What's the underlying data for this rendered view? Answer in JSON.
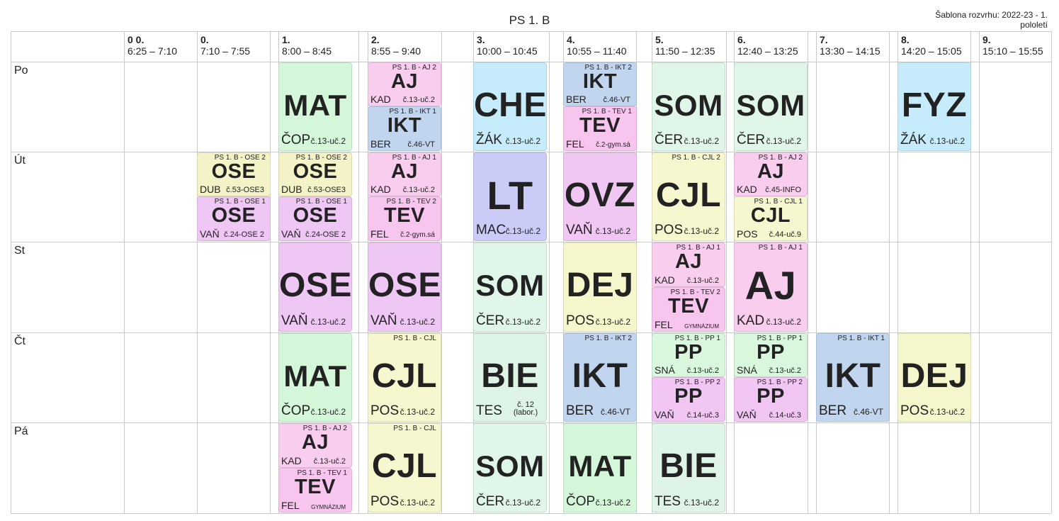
{
  "header": {
    "title": "PS 1. B",
    "template_line1": "Šablona rozvrhu: 2022-23 - 1.",
    "template_line2": "pololetí"
  },
  "periods": [
    {
      "num": "0 0.",
      "time": "6:25 – 7:10"
    },
    {
      "num": "0.",
      "time": "7:10 – 7:55"
    },
    {
      "num": "1.",
      "time": "8:00 – 8:45"
    },
    {
      "num": "2.",
      "time": "8:55 – 9:40"
    },
    {
      "num": "3.",
      "time": "10:00 – 10:45"
    },
    {
      "num": "4.",
      "time": "10:55 – 11:40"
    },
    {
      "num": "5.",
      "time": "11:50 – 12:35"
    },
    {
      "num": "6.",
      "time": "12:40 – 13:25"
    },
    {
      "num": "7.",
      "time": "13:30 – 14:15"
    },
    {
      "num": "8.",
      "time": "14:20 – 15:05"
    },
    {
      "num": "9.",
      "time": "15:10 – 15:55"
    }
  ],
  "days": [
    "Po",
    "Út",
    "St",
    "Čt",
    "Pá"
  ],
  "colors": {
    "MAT": "#d4f6d9",
    "AJ": "#f9cdee",
    "IKT": "#c1d5ef",
    "TEV": "#f8c5ef",
    "CHE": "#c6ecfb",
    "SOM": "#dff6e8",
    "FYZ": "#c6ecfb",
    "OSE_A": "#f3f3c7",
    "OSE_B": "#efc7f5",
    "CJL": "#f6f6cf",
    "LT": "#cbcbf7",
    "OVZ": "#f0c6f3",
    "DEJ": "#f6f6cc",
    "PP": "#d9f7dd",
    "PP2": "#f1c6f3",
    "BIE": "#ddf4e6"
  },
  "lessons": [
    {
      "day": 0,
      "period": 2,
      "part": "full",
      "subject": "MAT",
      "color": "MAT",
      "group": "",
      "teacher": "ČOP",
      "room": "č.13-uč.2"
    },
    {
      "day": 0,
      "period": 3,
      "part": "top",
      "subject": "AJ",
      "color": "AJ",
      "group": "PS 1. B - AJ 2",
      "teacher": "KAD",
      "room": "č.13-uč.2"
    },
    {
      "day": 0,
      "period": 3,
      "part": "bottom",
      "subject": "IKT",
      "color": "IKT",
      "group": "PS 1. B - IKT 1",
      "teacher": "BER",
      "room": "č.46-VT"
    },
    {
      "day": 0,
      "period": 4,
      "part": "full",
      "subject": "CHE",
      "color": "CHE",
      "group": "",
      "teacher": "ŽÁK",
      "room": "č.13-uč.2"
    },
    {
      "day": 0,
      "period": 5,
      "part": "top",
      "subject": "IKT",
      "color": "IKT",
      "group": "PS 1. B - IKT 2",
      "teacher": "BER",
      "room": "č.46-VT"
    },
    {
      "day": 0,
      "period": 5,
      "part": "bottom",
      "subject": "TEV",
      "color": "TEV",
      "group": "PS 1. B - TEV 1",
      "teacher": "FEL",
      "room": "č.2-gym.sá"
    },
    {
      "day": 0,
      "period": 6,
      "part": "full",
      "subject": "SOM",
      "color": "SOM",
      "group": "",
      "teacher": "ČER",
      "room": "č.13-uč.2"
    },
    {
      "day": 0,
      "period": 7,
      "part": "full",
      "subject": "SOM",
      "color": "SOM",
      "group": "",
      "teacher": "ČER",
      "room": "č.13-uč.2"
    },
    {
      "day": 0,
      "period": 9,
      "part": "full",
      "subject": "FYZ",
      "color": "FYZ",
      "group": "",
      "teacher": "ŽÁK",
      "room": "č.13-uč.2"
    },
    {
      "day": 1,
      "period": 1,
      "part": "top",
      "subject": "OSE",
      "color": "OSE_A",
      "group": "PS 1. B - OSE 2",
      "teacher": "DUB",
      "room": "č.53-OSE3"
    },
    {
      "day": 1,
      "period": 1,
      "part": "bottom",
      "subject": "OSE",
      "color": "OSE_B",
      "group": "PS 1. B - OSE 1",
      "teacher": "VAŇ",
      "room": "č.24-OSE 2"
    },
    {
      "day": 1,
      "period": 2,
      "part": "top",
      "subject": "OSE",
      "color": "OSE_A",
      "group": "PS 1. B - OSE 2",
      "teacher": "DUB",
      "room": "č.53-OSE3"
    },
    {
      "day": 1,
      "period": 2,
      "part": "bottom",
      "subject": "OSE",
      "color": "OSE_B",
      "group": "PS 1. B - OSE 1",
      "teacher": "VAŇ",
      "room": "č.24-OSE 2"
    },
    {
      "day": 1,
      "period": 3,
      "part": "top",
      "subject": "AJ",
      "color": "AJ",
      "group": "PS 1. B - AJ 1",
      "teacher": "KAD",
      "room": "č.13-uč.2"
    },
    {
      "day": 1,
      "period": 3,
      "part": "bottom",
      "subject": "TEV",
      "color": "TEV",
      "group": "PS 1. B - TEV 2",
      "teacher": "FEL",
      "room": "č.2-gym.sá"
    },
    {
      "day": 1,
      "period": 4,
      "part": "full",
      "subject": "LT",
      "color": "LT",
      "group": "",
      "teacher": "MAC",
      "room": "č.13-uč.2"
    },
    {
      "day": 1,
      "period": 5,
      "part": "full",
      "subject": "OVZ",
      "color": "OVZ",
      "group": "",
      "teacher": "VAŇ",
      "room": "č.13-uč.2"
    },
    {
      "day": 1,
      "period": 6,
      "part": "full",
      "subject": "CJL",
      "color": "CJL",
      "group": "PS 1. B - CJL 2",
      "teacher": "POS",
      "room": "č.13-uč.2"
    },
    {
      "day": 1,
      "period": 7,
      "part": "top",
      "subject": "AJ",
      "color": "AJ",
      "group": "PS 1. B - AJ 2",
      "teacher": "KAD",
      "room": "č.45-INFO"
    },
    {
      "day": 1,
      "period": 7,
      "part": "bottom",
      "subject": "CJL",
      "color": "CJL",
      "group": "PS 1. B - CJL 1",
      "teacher": "POS",
      "room": "č.44-uč.9"
    },
    {
      "day": 2,
      "period": 2,
      "part": "full",
      "subject": "OSE",
      "color": "OSE_B",
      "group": "",
      "teacher": "VAŇ",
      "room": "č.13-uč.2"
    },
    {
      "day": 2,
      "period": 3,
      "part": "full",
      "subject": "OSE",
      "color": "OSE_B",
      "group": "",
      "teacher": "VAŇ",
      "room": "č.13-uč.2"
    },
    {
      "day": 2,
      "period": 4,
      "part": "full",
      "subject": "SOM",
      "color": "SOM",
      "group": "",
      "teacher": "ČER",
      "room": "č.13-uč.2"
    },
    {
      "day": 2,
      "period": 5,
      "part": "full",
      "subject": "DEJ",
      "color": "DEJ",
      "group": "",
      "teacher": "POS",
      "room": "č.13-uč.2"
    },
    {
      "day": 2,
      "period": 6,
      "part": "top",
      "subject": "AJ",
      "color": "AJ",
      "group": "PS 1. B - AJ 1",
      "teacher": "KAD",
      "room": "č.13-uč.2"
    },
    {
      "day": 2,
      "period": 6,
      "part": "bottom",
      "subject": "TEV",
      "color": "TEV",
      "group": "PS 1. B - TEV 2",
      "teacher": "FEL",
      "room": "GYMNÁZIUM"
    },
    {
      "day": 2,
      "period": 7,
      "part": "full",
      "subject": "AJ",
      "color": "AJ",
      "group": "PS 1. B - AJ 1",
      "teacher": "KAD",
      "room": "č.13-uč.2"
    },
    {
      "day": 3,
      "period": 2,
      "part": "full",
      "subject": "MAT",
      "color": "MAT",
      "group": "",
      "teacher": "ČOP",
      "room": "č.13-uč.2"
    },
    {
      "day": 3,
      "period": 3,
      "part": "full",
      "subject": "CJL",
      "color": "CJL",
      "group": "PS 1. B - CJL",
      "teacher": "POS",
      "room": "č.13-uč.2"
    },
    {
      "day": 3,
      "period": 4,
      "part": "full",
      "subject": "BIE",
      "color": "BIE",
      "group": "",
      "teacher": "TES",
      "room": "č. 12 (labor.)"
    },
    {
      "day": 3,
      "period": 5,
      "part": "full",
      "subject": "IKT",
      "color": "IKT",
      "group": "PS 1. B - IKT 2",
      "teacher": "BER",
      "room": "č.46-VT"
    },
    {
      "day": 3,
      "period": 6,
      "part": "top",
      "subject": "PP",
      "color": "PP",
      "group": "PS 1. B - PP 1",
      "teacher": "SNÁ",
      "room": "č.13-uč.2"
    },
    {
      "day": 3,
      "period": 6,
      "part": "bottom",
      "subject": "PP",
      "color": "PP2",
      "group": "PS 1. B - PP 2",
      "teacher": "VAŇ",
      "room": "č.14-uč.3"
    },
    {
      "day": 3,
      "period": 7,
      "part": "top",
      "subject": "PP",
      "color": "PP",
      "group": "PS 1. B - PP 1",
      "teacher": "SNÁ",
      "room": "č.13-uč.2"
    },
    {
      "day": 3,
      "period": 7,
      "part": "bottom",
      "subject": "PP",
      "color": "PP2",
      "group": "PS 1. B - PP 2",
      "teacher": "VAŇ",
      "room": "č.14-uč.3"
    },
    {
      "day": 3,
      "period": 8,
      "part": "full",
      "subject": "IKT",
      "color": "IKT",
      "group": "PS 1. B - IKT 1",
      "teacher": "BER",
      "room": "č.46-VT"
    },
    {
      "day": 3,
      "period": 9,
      "part": "full",
      "subject": "DEJ",
      "color": "DEJ",
      "group": "",
      "teacher": "POS",
      "room": "č.13-uč.2"
    },
    {
      "day": 4,
      "period": 2,
      "part": "top",
      "subject": "AJ",
      "color": "AJ",
      "group": "PS 1. B - AJ 2",
      "teacher": "KAD",
      "room": "č.13-uč.2"
    },
    {
      "day": 4,
      "period": 2,
      "part": "bottom",
      "subject": "TEV",
      "color": "TEV",
      "group": "PS 1. B - TEV 1",
      "teacher": "FEL",
      "room": "GYMNÁZIUM"
    },
    {
      "day": 4,
      "period": 3,
      "part": "full",
      "subject": "CJL",
      "color": "CJL",
      "group": "PS 1. B - CJL",
      "teacher": "POS",
      "room": "č.13-uč.2"
    },
    {
      "day": 4,
      "period": 4,
      "part": "full",
      "subject": "SOM",
      "color": "SOM",
      "group": "",
      "teacher": "ČER",
      "room": "č.13-uč.2"
    },
    {
      "day": 4,
      "period": 5,
      "part": "full",
      "subject": "MAT",
      "color": "MAT",
      "group": "",
      "teacher": "ČOP",
      "room": "č.13-uč.2"
    },
    {
      "day": 4,
      "period": 6,
      "part": "full",
      "subject": "BIE",
      "color": "BIE",
      "group": "",
      "teacher": "TES",
      "room": "č.13-uč.2"
    }
  ]
}
